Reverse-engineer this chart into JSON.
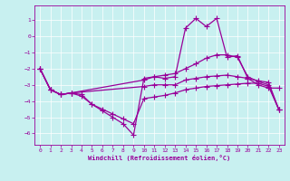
{
  "xlabel": "Windchill (Refroidissement éolien,°C)",
  "bg_color": "#c8f0f0",
  "line_color": "#990099",
  "xlim": [
    -0.5,
    23.5
  ],
  "ylim": [
    -6.7,
    1.9
  ],
  "xticks": [
    0,
    1,
    2,
    3,
    4,
    5,
    6,
    7,
    8,
    9,
    10,
    11,
    12,
    13,
    14,
    15,
    16,
    17,
    18,
    19,
    20,
    21,
    22,
    23
  ],
  "yticks": [
    -6,
    -5,
    -4,
    -3,
    -2,
    -1,
    0,
    1
  ],
  "series1": [
    [
      0,
      -2.0
    ],
    [
      1,
      -3.3
    ],
    [
      2,
      -3.6
    ],
    [
      3,
      -3.5
    ],
    [
      4,
      -3.6
    ],
    [
      5,
      -4.2
    ],
    [
      6,
      -4.6
    ],
    [
      7,
      -5.0
    ],
    [
      8,
      -5.4
    ],
    [
      9,
      -6.1
    ],
    [
      10,
      -2.6
    ],
    [
      11,
      -2.5
    ],
    [
      12,
      -2.6
    ],
    [
      13,
      -2.5
    ],
    [
      14,
      0.5
    ],
    [
      15,
      1.1
    ],
    [
      16,
      0.6
    ],
    [
      17,
      1.1
    ],
    [
      18,
      -1.3
    ],
    [
      19,
      -1.2
    ],
    [
      20,
      -2.6
    ],
    [
      21,
      -3.0
    ],
    [
      22,
      -3.2
    ],
    [
      23,
      -3.2
    ]
  ],
  "series2": [
    [
      0,
      -2.0
    ],
    [
      1,
      -3.3
    ],
    [
      2,
      -3.6
    ],
    [
      3,
      -3.5
    ],
    [
      4,
      -3.7
    ],
    [
      5,
      -4.2
    ],
    [
      6,
      -4.5
    ],
    [
      7,
      -4.8
    ],
    [
      8,
      -5.1
    ],
    [
      9,
      -5.4
    ],
    [
      10,
      -3.85
    ],
    [
      11,
      -3.75
    ],
    [
      12,
      -3.65
    ],
    [
      13,
      -3.5
    ],
    [
      14,
      -3.3
    ],
    [
      15,
      -3.2
    ],
    [
      16,
      -3.1
    ],
    [
      17,
      -3.05
    ],
    [
      18,
      -3.0
    ],
    [
      19,
      -2.95
    ],
    [
      20,
      -2.9
    ],
    [
      21,
      -2.9
    ],
    [
      22,
      -3.1
    ],
    [
      23,
      -4.55
    ]
  ],
  "series3": [
    [
      0,
      -2.0
    ],
    [
      1,
      -3.3
    ],
    [
      2,
      -3.6
    ],
    [
      3,
      -3.5
    ],
    [
      10,
      -2.7
    ],
    [
      11,
      -2.5
    ],
    [
      12,
      -2.4
    ],
    [
      13,
      -2.3
    ],
    [
      14,
      -2.0
    ],
    [
      15,
      -1.7
    ],
    [
      16,
      -1.35
    ],
    [
      17,
      -1.15
    ],
    [
      18,
      -1.15
    ],
    [
      19,
      -1.3
    ],
    [
      20,
      -2.5
    ],
    [
      21,
      -2.8
    ],
    [
      22,
      -3.0
    ],
    [
      23,
      -4.55
    ]
  ],
  "series4": [
    [
      0,
      -2.0
    ],
    [
      1,
      -3.3
    ],
    [
      2,
      -3.6
    ],
    [
      3,
      -3.5
    ],
    [
      10,
      -3.1
    ],
    [
      11,
      -3.0
    ],
    [
      12,
      -3.0
    ],
    [
      13,
      -3.0
    ],
    [
      14,
      -2.7
    ],
    [
      15,
      -2.6
    ],
    [
      16,
      -2.5
    ],
    [
      17,
      -2.45
    ],
    [
      18,
      -2.4
    ],
    [
      19,
      -2.5
    ],
    [
      20,
      -2.6
    ],
    [
      21,
      -2.75
    ],
    [
      22,
      -2.85
    ],
    [
      23,
      -4.55
    ]
  ]
}
